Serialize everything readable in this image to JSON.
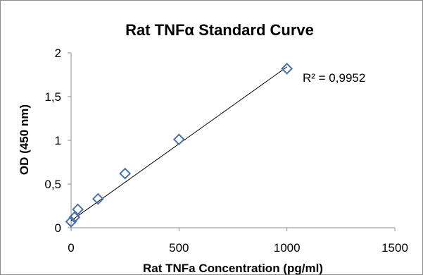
{
  "chart_data": {
    "type": "scatter",
    "title": "Rat TNFα Standard Curve",
    "xlabel": "Rat TNFa Concentration (pg/ml)",
    "ylabel": "OD (450 nm)",
    "xlim": [
      0,
      1500
    ],
    "ylim": [
      0,
      2
    ],
    "xticks": [
      0,
      500,
      1000,
      1500
    ],
    "yticks": [
      0,
      0.5,
      1,
      1.5,
      2
    ],
    "xtick_labels": [
      "0",
      "500",
      "1000",
      "1500"
    ],
    "ytick_labels": [
      "0",
      "0,5",
      "1",
      "1,5",
      "2"
    ],
    "grid": false,
    "legend": false,
    "marker": "diamond-open",
    "marker_color": "#4a72a8",
    "line_color": "#000000",
    "points": [
      {
        "x": 0,
        "y": 0.07
      },
      {
        "x": 15.6,
        "y": 0.12
      },
      {
        "x": 31.25,
        "y": 0.21
      },
      {
        "x": 125,
        "y": 0.33
      },
      {
        "x": 250,
        "y": 0.62
      },
      {
        "x": 500,
        "y": 1.01
      },
      {
        "x": 1000,
        "y": 1.82
      }
    ],
    "trendline": {
      "type": "linear",
      "x": [
        0,
        1000
      ],
      "y": [
        0.08,
        1.84
      ]
    },
    "annotation": "R² = 0,9952"
  }
}
